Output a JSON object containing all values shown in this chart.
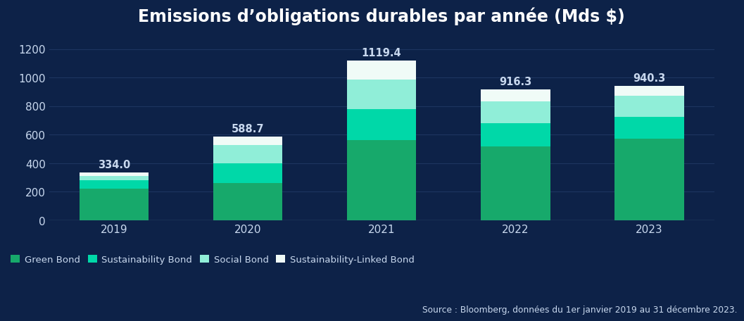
{
  "title": "Emissions d’obligations durables par année (Mds $)",
  "years": [
    "2019",
    "2020",
    "2021",
    "2022",
    "2023"
  ],
  "totals": [
    334.0,
    588.7,
    1119.4,
    916.3,
    940.3
  ],
  "segments": {
    "Green Bond": [
      220.0,
      260.0,
      560.0,
      520.0,
      570.0
    ],
    "Sustainability Bond": [
      60.0,
      140.0,
      220.0,
      160.0,
      155.0
    ],
    "Social Bond": [
      30.0,
      125.0,
      205.0,
      155.0,
      148.0
    ],
    "Sustainability-Linked Bond": [
      24.0,
      63.7,
      134.4,
      81.3,
      67.3
    ]
  },
  "colors": {
    "Green Bond": "#17a96b",
    "Sustainability Bond": "#00d8a8",
    "Social Bond": "#90eed8",
    "Sustainability-Linked Bond": "#f0fbf7"
  },
  "background_color": "#0d2248",
  "text_color": "#c8d8ee",
  "grid_color": "#1e3560",
  "bar_width": 0.52,
  "ylim": [
    0,
    1300
  ],
  "yticks": [
    0,
    200,
    400,
    600,
    800,
    1000,
    1200
  ],
  "source_text": "Source : Bloomberg, données du 1er janvier 2019 au 31 décembre 2023.",
  "title_fontsize": 17,
  "label_fontsize": 10.5,
  "tick_fontsize": 11,
  "legend_fontsize": 9.5
}
